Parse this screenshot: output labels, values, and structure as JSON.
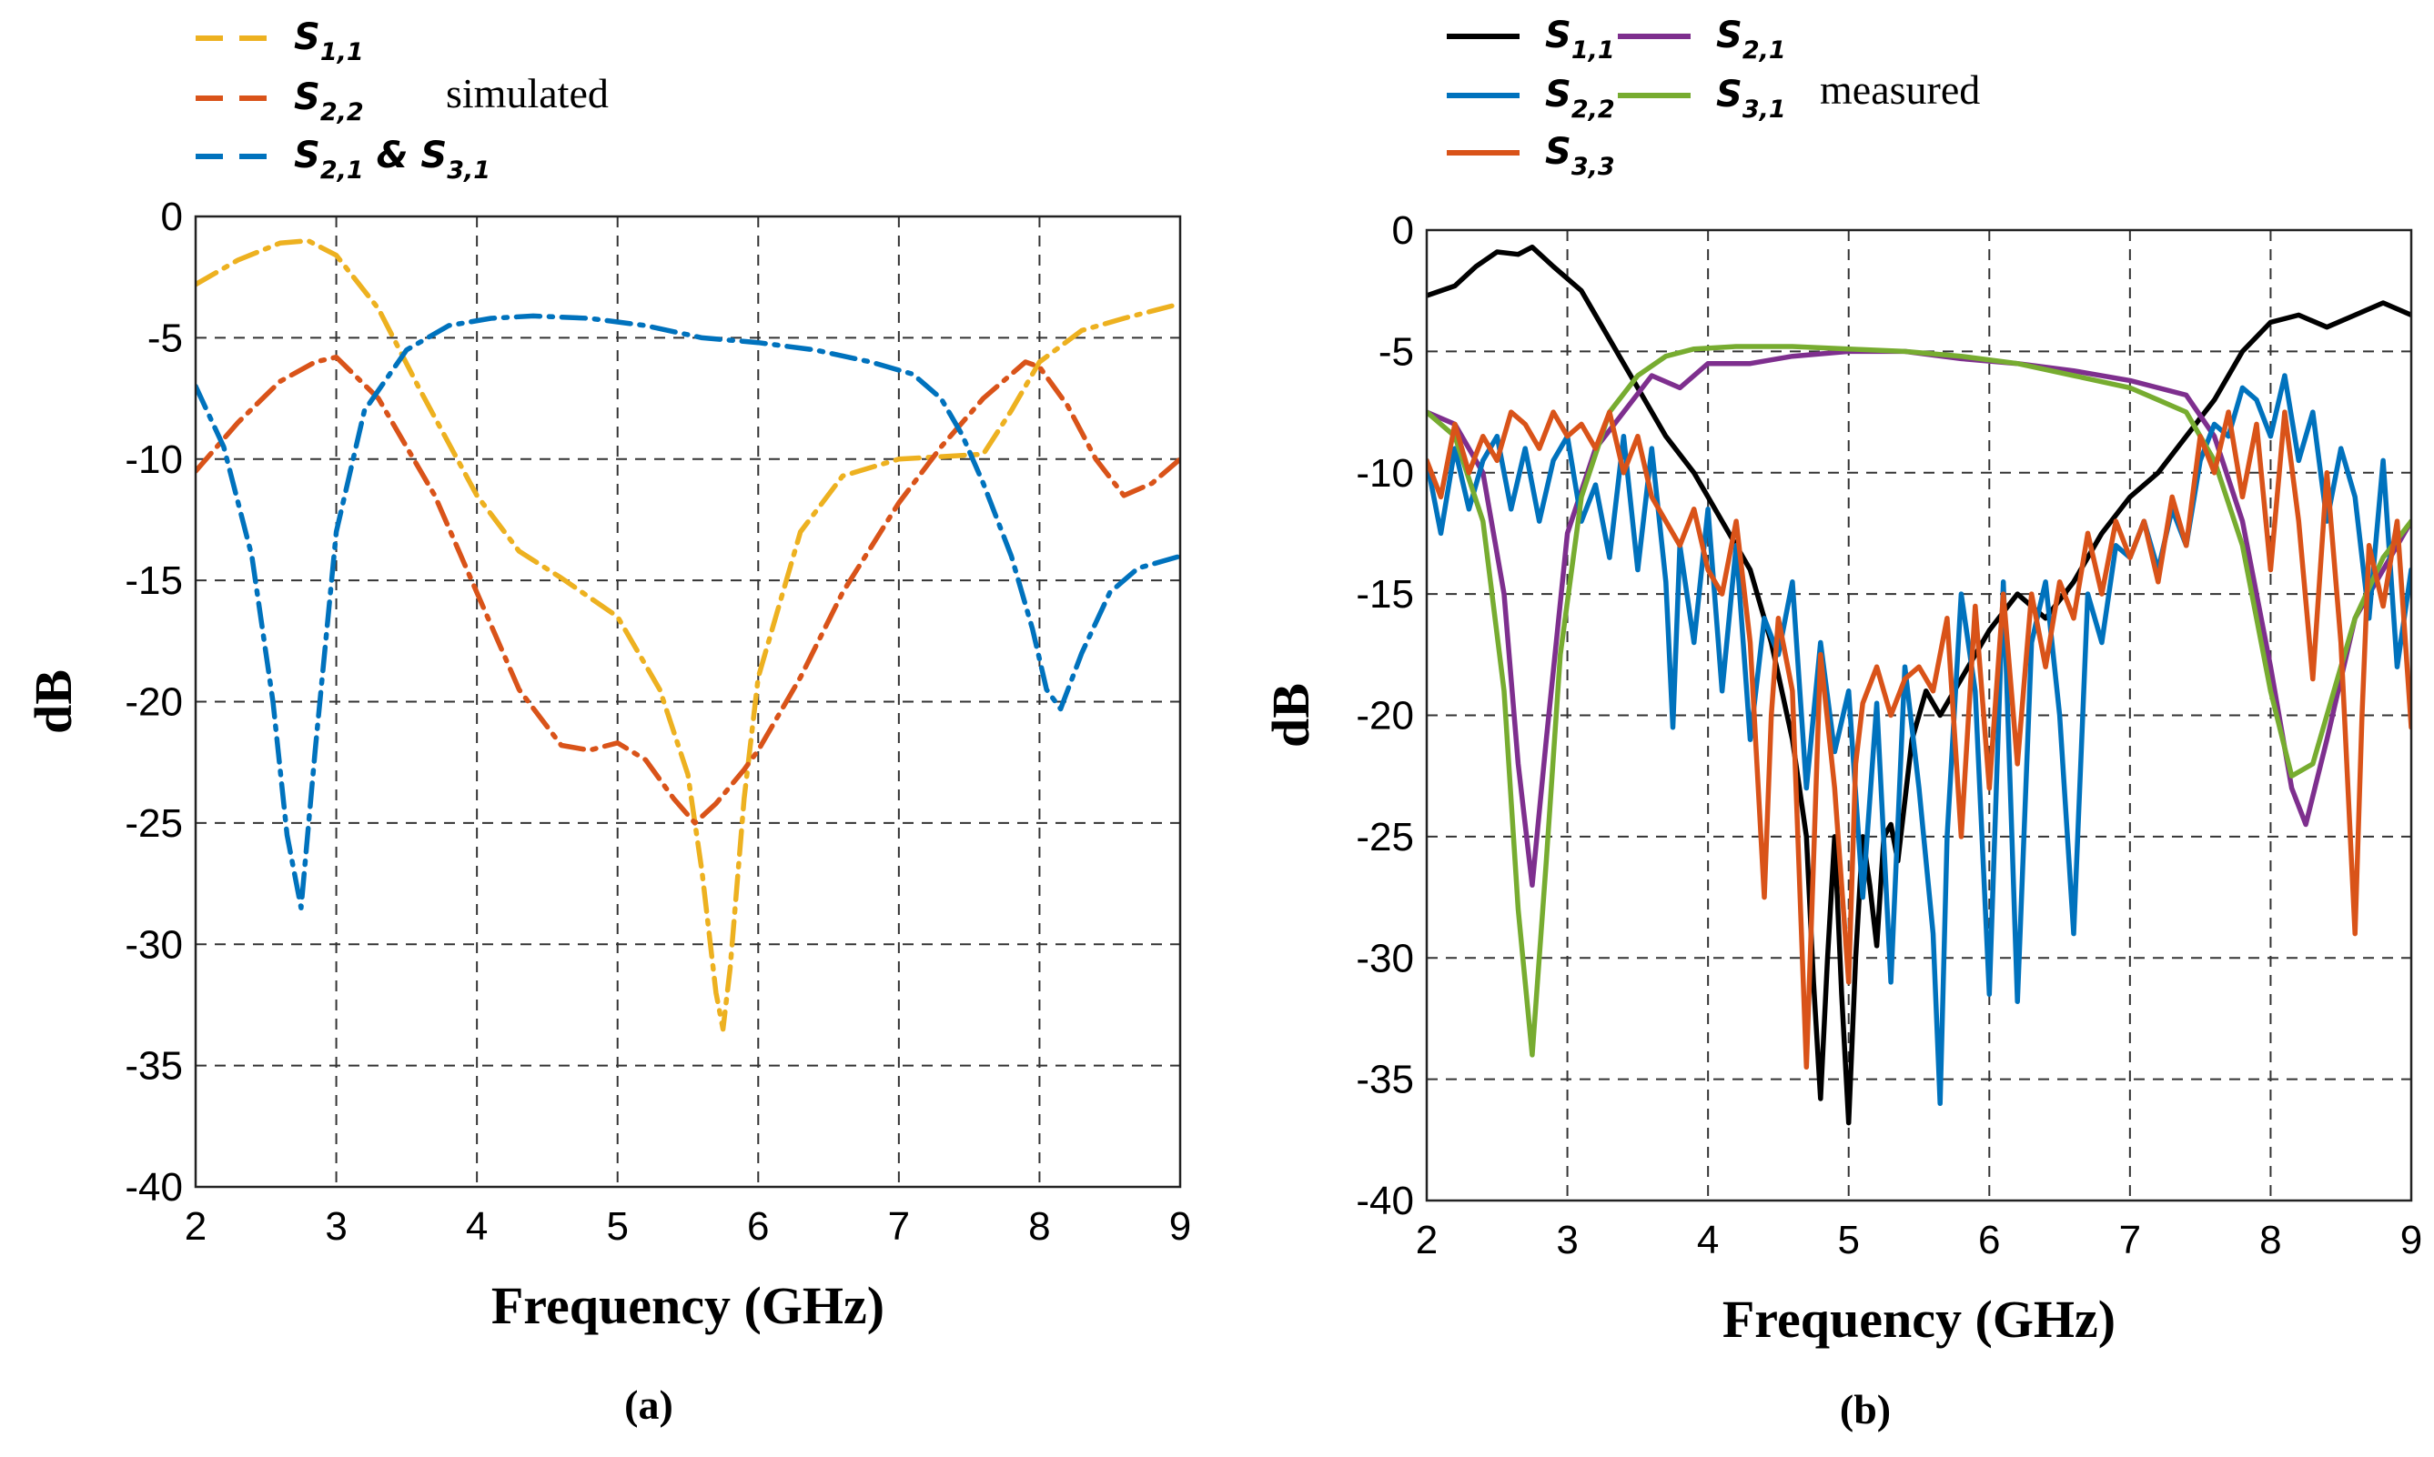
{
  "chart_data": [
    {
      "type": "line",
      "panel_label": "(a)",
      "xlabel": "Frequency (GHz)",
      "ylabel": "dB",
      "xlim": [
        2,
        9
      ],
      "ylim": [
        -40,
        0
      ],
      "xticks": [
        2,
        3,
        4,
        5,
        6,
        7,
        8,
        9
      ],
      "yticks": [
        0,
        -5,
        -10,
        -15,
        -20,
        -25,
        -30,
        -35,
        -40
      ],
      "grid": true,
      "legend_note": "simulated",
      "series": [
        {
          "name": "S1,1",
          "label_base": "S",
          "label_sub": "1,1",
          "color": "#EDB120",
          "dash": "dashdot",
          "x": [
            2,
            2.3,
            2.6,
            2.8,
            3.0,
            3.3,
            3.6,
            4.0,
            4.3,
            4.6,
            5.0,
            5.3,
            5.5,
            5.6,
            5.7,
            5.75,
            5.8,
            5.9,
            6.0,
            6.3,
            6.6,
            7.0,
            7.3,
            7.6,
            7.8,
            8.0,
            8.3,
            8.6,
            9.0
          ],
          "values": [
            -2.8,
            -1.8,
            -1.1,
            -1.0,
            -1.6,
            -3.8,
            -7.2,
            -11.5,
            -13.8,
            -14.9,
            -16.5,
            -19.5,
            -23.0,
            -27.0,
            -32.0,
            -33.5,
            -31.0,
            -24.0,
            -19.0,
            -13.0,
            -10.7,
            -10.0,
            -9.9,
            -9.8,
            -8.0,
            -6.0,
            -4.7,
            -4.2,
            -3.6
          ]
        },
        {
          "name": "S2,2",
          "label_base": "S",
          "label_sub": "2,2",
          "color": "#D95319",
          "dash": "dashdot",
          "x": [
            2,
            2.3,
            2.6,
            2.85,
            3.0,
            3.3,
            3.7,
            4.0,
            4.3,
            4.6,
            4.8,
            5.0,
            5.2,
            5.4,
            5.55,
            5.7,
            5.9,
            6.0,
            6.3,
            6.6,
            7.0,
            7.3,
            7.6,
            7.9,
            8.0,
            8.2,
            8.4,
            8.6,
            8.8,
            9.0
          ],
          "values": [
            -10.5,
            -8.5,
            -6.8,
            -6.0,
            -5.8,
            -7.5,
            -11.5,
            -15.5,
            -19.5,
            -21.8,
            -22.0,
            -21.7,
            -22.4,
            -24.0,
            -25.0,
            -24.2,
            -22.8,
            -22.0,
            -19.0,
            -15.5,
            -11.8,
            -9.5,
            -7.5,
            -6.0,
            -6.2,
            -7.8,
            -10.0,
            -11.5,
            -11.0,
            -10.0
          ]
        },
        {
          "name": "S2,1 & S3,1",
          "label_base": "S",
          "label_sub": "2,1",
          "label_mid": " & S",
          "label_sub2": "3,1",
          "color": "#0072BD",
          "dash": "dashdot",
          "x": [
            2,
            2.2,
            2.4,
            2.55,
            2.65,
            2.75,
            2.85,
            3.0,
            3.2,
            3.5,
            3.8,
            4.1,
            4.4,
            4.8,
            5.2,
            5.6,
            6.0,
            6.4,
            6.8,
            7.1,
            7.3,
            7.45,
            7.6,
            7.8,
            7.95,
            8.05,
            8.15,
            8.3,
            8.5,
            8.7,
            9.0
          ],
          "values": [
            -7.0,
            -9.5,
            -14.0,
            -20.0,
            -25.5,
            -28.5,
            -22.0,
            -13.0,
            -8.0,
            -5.5,
            -4.5,
            -4.2,
            -4.1,
            -4.2,
            -4.5,
            -5.0,
            -5.2,
            -5.5,
            -6.0,
            -6.5,
            -7.5,
            -9.0,
            -11.0,
            -14.0,
            -17.0,
            -19.5,
            -20.3,
            -18.0,
            -15.5,
            -14.5,
            -14.0
          ]
        }
      ]
    },
    {
      "type": "line",
      "panel_label": "(b)",
      "xlabel": "Frequency (GHz)",
      "ylabel": "dB",
      "xlim": [
        2,
        9
      ],
      "ylim": [
        -40,
        0
      ],
      "xticks": [
        2,
        3,
        4,
        5,
        6,
        7,
        8,
        9
      ],
      "yticks": [
        0,
        -5,
        -10,
        -15,
        -20,
        -25,
        -30,
        -35,
        -40
      ],
      "grid": true,
      "legend_note": "measured",
      "series": [
        {
          "name": "S1,1",
          "label_base": "S",
          "label_sub": "1,1",
          "color": "#000000",
          "x": [
            2,
            2.2,
            2.35,
            2.5,
            2.65,
            2.75,
            2.9,
            3.1,
            3.3,
            3.5,
            3.7,
            3.9,
            4.1,
            4.3,
            4.45,
            4.6,
            4.7,
            4.75,
            4.8,
            4.85,
            4.9,
            4.95,
            5.0,
            5.05,
            5.1,
            5.15,
            5.2,
            5.25,
            5.3,
            5.35,
            5.45,
            5.55,
            5.65,
            5.8,
            6.0,
            6.2,
            6.4,
            6.6,
            6.8,
            7.0,
            7.2,
            7.4,
            7.6,
            7.8,
            8.0,
            8.2,
            8.4,
            8.6,
            8.8,
            9.0
          ],
          "values": [
            -2.7,
            -2.3,
            -1.5,
            -0.9,
            -1.0,
            -0.7,
            -1.5,
            -2.5,
            -4.5,
            -6.5,
            -8.5,
            -10.0,
            -12.0,
            -14.0,
            -17.0,
            -21.0,
            -25.0,
            -31.0,
            -35.8,
            -30.0,
            -25.0,
            -31.5,
            -36.8,
            -30.0,
            -25.0,
            -27.0,
            -29.5,
            -25.0,
            -24.5,
            -26.0,
            -21.0,
            -19.0,
            -20.0,
            -18.5,
            -16.5,
            -15.0,
            -16.0,
            -14.5,
            -12.5,
            -11.0,
            -10.0,
            -8.5,
            -7.0,
            -5.0,
            -3.8,
            -3.5,
            -4.0,
            -3.5,
            -3.0,
            -3.5
          ]
        },
        {
          "name": "S2,1",
          "label_base": "S",
          "label_sub": "2,1",
          "color": "#7E2F8E",
          "x": [
            2,
            2.2,
            2.4,
            2.55,
            2.65,
            2.75,
            2.85,
            3.0,
            3.2,
            3.4,
            3.6,
            3.8,
            4.0,
            4.3,
            4.6,
            5.0,
            5.4,
            5.8,
            6.2,
            6.6,
            7.0,
            7.2,
            7.4,
            7.6,
            7.8,
            8.0,
            8.15,
            8.25,
            8.4,
            8.6,
            8.8,
            9.0
          ],
          "values": [
            -7.5,
            -8.0,
            -10.0,
            -15.0,
            -22.0,
            -27.0,
            -21.0,
            -12.5,
            -9.0,
            -7.5,
            -6.0,
            -6.5,
            -5.5,
            -5.5,
            -5.2,
            -5.0,
            -5.0,
            -5.3,
            -5.5,
            -5.8,
            -6.2,
            -6.5,
            -6.8,
            -8.5,
            -12.0,
            -18.0,
            -23.0,
            -24.5,
            -21.0,
            -16.0,
            -14.0,
            -12.0
          ]
        },
        {
          "name": "S2,2",
          "label_base": "S",
          "label_sub": "2,2",
          "color": "#0072BD",
          "x": [
            2,
            2.1,
            2.2,
            2.3,
            2.4,
            2.5,
            2.6,
            2.7,
            2.8,
            2.9,
            3.0,
            3.1,
            3.2,
            3.3,
            3.4,
            3.5,
            3.6,
            3.7,
            3.75,
            3.8,
            3.9,
            4.0,
            4.1,
            4.2,
            4.3,
            4.4,
            4.5,
            4.6,
            4.7,
            4.8,
            4.9,
            5.0,
            5.1,
            5.2,
            5.3,
            5.4,
            5.5,
            5.6,
            5.65,
            5.7,
            5.8,
            5.9,
            6.0,
            6.1,
            6.2,
            6.3,
            6.4,
            6.5,
            6.6,
            6.7,
            6.8,
            6.9,
            7.0,
            7.1,
            7.2,
            7.3,
            7.4,
            7.5,
            7.6,
            7.7,
            7.8,
            7.9,
            8.0,
            8.1,
            8.2,
            8.3,
            8.4,
            8.5,
            8.6,
            8.7,
            8.8,
            8.9,
            9.0
          ],
          "values": [
            -9.5,
            -12.5,
            -9.0,
            -11.5,
            -9.5,
            -8.5,
            -11.5,
            -9.0,
            -12.0,
            -9.5,
            -8.5,
            -12.0,
            -10.5,
            -13.5,
            -8.5,
            -14.0,
            -9.0,
            -14.5,
            -20.5,
            -13.0,
            -17.0,
            -11.5,
            -19.0,
            -13.0,
            -21.0,
            -16.0,
            -17.5,
            -14.5,
            -23.0,
            -17.0,
            -21.5,
            -19.0,
            -27.5,
            -19.5,
            -31.0,
            -18.0,
            -23.0,
            -29.0,
            -36.0,
            -25.0,
            -15.0,
            -19.0,
            -31.5,
            -14.5,
            -31.8,
            -17.0,
            -14.5,
            -20.0,
            -29.0,
            -15.0,
            -17.0,
            -13.0,
            -13.5,
            -12.0,
            -14.0,
            -11.5,
            -13.0,
            -9.5,
            -8.0,
            -8.5,
            -6.5,
            -7.0,
            -8.5,
            -6.0,
            -9.5,
            -7.5,
            -12.0,
            -9.0,
            -11.0,
            -16.0,
            -9.5,
            -18.0,
            -14.0
          ]
        },
        {
          "name": "S3,1",
          "label_base": "S",
          "label_sub": "3,1",
          "color": "#77AC30",
          "x": [
            2,
            2.2,
            2.4,
            2.55,
            2.65,
            2.75,
            2.85,
            2.95,
            3.1,
            3.3,
            3.5,
            3.7,
            3.9,
            4.2,
            4.6,
            5.0,
            5.4,
            5.8,
            6.2,
            6.6,
            7.0,
            7.2,
            7.4,
            7.6,
            7.8,
            8.0,
            8.15,
            8.3,
            8.45,
            8.6,
            8.8,
            9.0
          ],
          "values": [
            -7.5,
            -8.5,
            -12.0,
            -19.0,
            -28.0,
            -34.0,
            -26.0,
            -17.5,
            -11.0,
            -7.5,
            -6.0,
            -5.2,
            -4.9,
            -4.8,
            -4.8,
            -4.9,
            -5.0,
            -5.2,
            -5.5,
            -6.0,
            -6.5,
            -7.0,
            -7.5,
            -9.5,
            -13.0,
            -19.0,
            -22.5,
            -22.0,
            -19.0,
            -16.0,
            -13.5,
            -12.0
          ]
        },
        {
          "name": "S3,3",
          "label_base": "S",
          "label_sub": "3,3",
          "color": "#D95319",
          "x": [
            2,
            2.1,
            2.2,
            2.3,
            2.4,
            2.5,
            2.6,
            2.7,
            2.8,
            2.9,
            3.0,
            3.1,
            3.2,
            3.3,
            3.4,
            3.5,
            3.6,
            3.7,
            3.8,
            3.9,
            4.0,
            4.1,
            4.2,
            4.3,
            4.4,
            4.45,
            4.5,
            4.6,
            4.7,
            4.75,
            4.8,
            4.9,
            5.0,
            5.05,
            5.1,
            5.2,
            5.3,
            5.4,
            5.5,
            5.6,
            5.7,
            5.8,
            5.9,
            6.0,
            6.1,
            6.2,
            6.3,
            6.4,
            6.5,
            6.6,
            6.7,
            6.8,
            6.9,
            7.0,
            7.1,
            7.2,
            7.3,
            7.4,
            7.5,
            7.6,
            7.7,
            7.8,
            7.9,
            8.0,
            8.1,
            8.2,
            8.3,
            8.4,
            8.5,
            8.6,
            8.65,
            8.7,
            8.8,
            8.9,
            9.0
          ],
          "values": [
            -9.5,
            -11.0,
            -8.0,
            -10.0,
            -8.5,
            -9.5,
            -7.5,
            -8.0,
            -9.0,
            -7.5,
            -8.5,
            -8.0,
            -9.0,
            -7.5,
            -10.0,
            -8.5,
            -11.0,
            -12.0,
            -13.0,
            -11.5,
            -14.0,
            -15.0,
            -12.0,
            -17.0,
            -27.5,
            -20.0,
            -16.0,
            -19.0,
            -34.5,
            -26.0,
            -17.5,
            -23.0,
            -31.0,
            -22.0,
            -19.5,
            -18.0,
            -20.0,
            -18.5,
            -18.0,
            -19.0,
            -16.0,
            -25.0,
            -15.5,
            -23.0,
            -15.0,
            -22.0,
            -15.0,
            -18.0,
            -14.5,
            -16.0,
            -12.5,
            -15.0,
            -12.0,
            -13.5,
            -12.0,
            -14.5,
            -11.0,
            -13.0,
            -8.5,
            -10.0,
            -7.5,
            -11.0,
            -8.0,
            -14.0,
            -7.5,
            -12.0,
            -18.5,
            -10.0,
            -17.0,
            -29.0,
            -20.0,
            -13.0,
            -15.5,
            -12.0,
            -20.5
          ]
        }
      ]
    }
  ]
}
